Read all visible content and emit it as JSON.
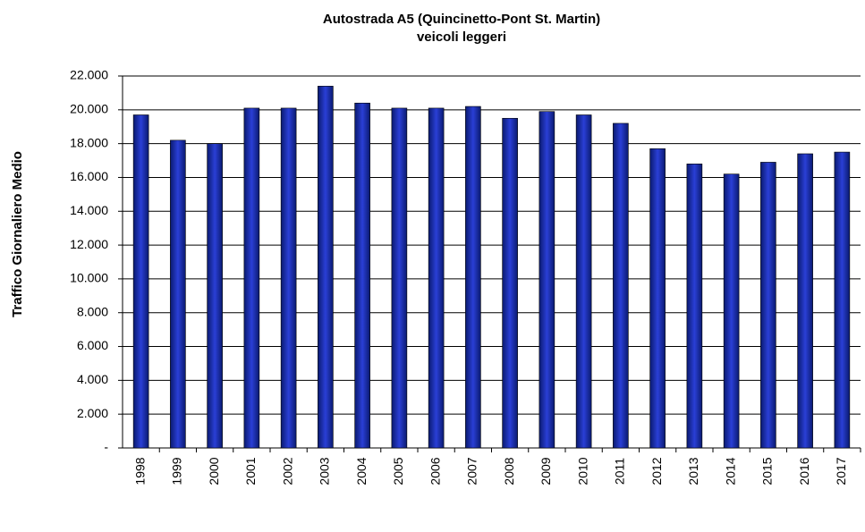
{
  "chart_data": {
    "type": "bar",
    "title": "Autostrada A5 (Quincinetto-Pont St. Martin)",
    "subtitle": "veicoli leggeri",
    "y_label": "Traffico Giornaliero Medio",
    "categories": [
      "1998",
      "1999",
      "2000",
      "2001",
      "2002",
      "2003",
      "2004",
      "2005",
      "2006",
      "2007",
      "2008",
      "2009",
      "2010",
      "2011",
      "2012",
      "2013",
      "2014",
      "2015",
      "2016",
      "2017"
    ],
    "values": [
      19700,
      18200,
      18000,
      20100,
      20100,
      21400,
      20400,
      20100,
      20100,
      20200,
      19500,
      19900,
      19700,
      19200,
      17700,
      16800,
      16200,
      16900,
      17400,
      17500
    ],
    "color": "#2a3fd6",
    "ylim": [
      0,
      22000
    ],
    "yticks": [
      {
        "value": 0,
        "label": "-"
      },
      {
        "value": 2000,
        "label": "2.000"
      },
      {
        "value": 4000,
        "label": "4.000"
      },
      {
        "value": 6000,
        "label": "6.000"
      },
      {
        "value": 8000,
        "label": "8.000"
      },
      {
        "value": 10000,
        "label": "10.000"
      },
      {
        "value": 12000,
        "label": "12.000"
      },
      {
        "value": 14000,
        "label": "14.000"
      },
      {
        "value": 16000,
        "label": "16.000"
      },
      {
        "value": 18000,
        "label": "18.000"
      },
      {
        "value": 20000,
        "label": "20.000"
      },
      {
        "value": 22000,
        "label": "22.000"
      }
    ],
    "grid": true
  }
}
